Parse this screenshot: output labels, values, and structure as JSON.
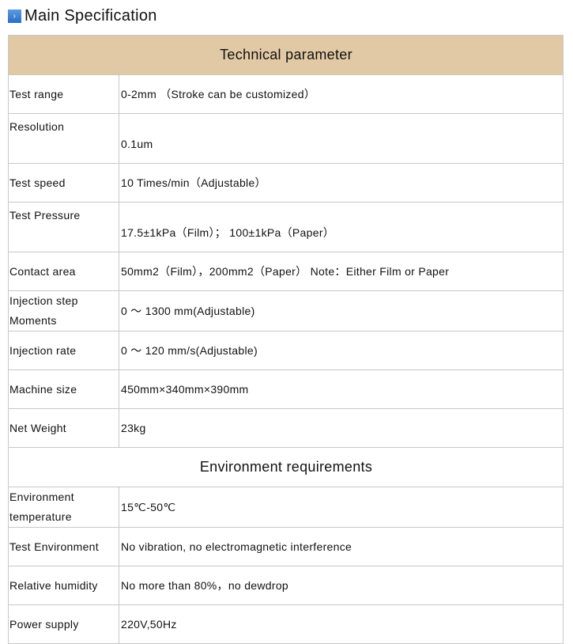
{
  "title": "Main Specification",
  "sections": [
    {
      "heading": "Technical parameter",
      "rows": [
        {
          "label": "Test range",
          "value": "0-2mm （Stroke can be customized）"
        },
        {
          "label": "Resolution",
          "value": "0.1um",
          "top": true
        },
        {
          "label": "Test speed",
          "value": "10 Times/min（Adjustable）"
        },
        {
          "label": "Test Pressure",
          "value": "17.5±1kPa（Film）； 100±1kPa（Paper）",
          "top": true
        },
        {
          "label": "Contact area",
          "value": "50mm2（Film），200mm2（Paper） Note：Either Film or Paper"
        },
        {
          "label": "Injection step Moments",
          "value": "0 ～ 1300 mm(Adjustable)"
        },
        {
          "label": "Injection rate",
          "value": "0 ～ 120 mm/s(Adjustable)"
        },
        {
          "label": "Machine size",
          "value": "450mm×340mm×390mm"
        },
        {
          "label": "Net Weight",
          "value": "23kg"
        }
      ]
    },
    {
      "heading": "Environment requirements",
      "rows": [
        {
          "label": "Environment temperature",
          "value": "15℃-50℃"
        },
        {
          "label": "Test Environment",
          "value": "No vibration, no electromagnetic interference"
        },
        {
          "label": "Relative humidity",
          "value": "No more than 80%，no dewdrop"
        },
        {
          "label": "Power supply",
          "value": "220V,50Hz"
        }
      ]
    }
  ],
  "colors": {
    "header_bg": "#e2c9a5",
    "border": "#c8c8c8"
  }
}
